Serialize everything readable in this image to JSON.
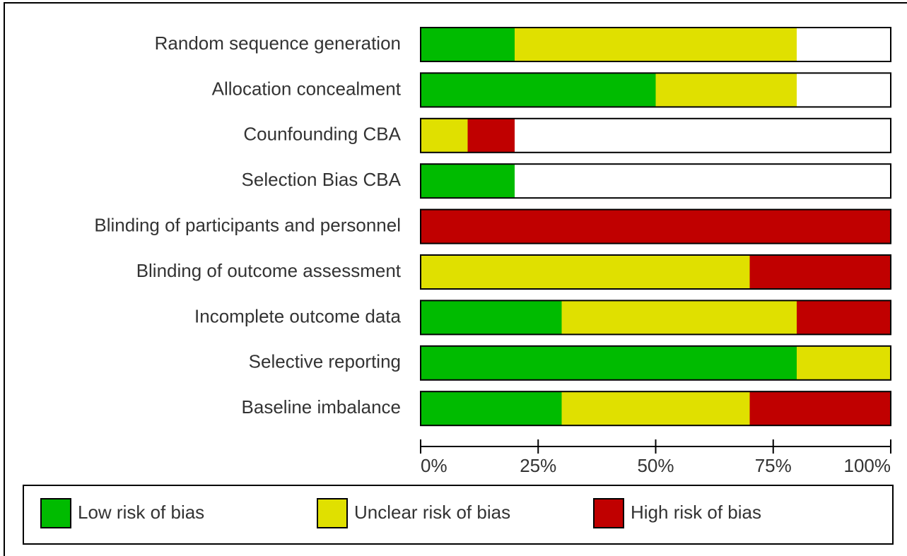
{
  "chart_data": {
    "type": "stacked-barh",
    "categories": [
      "Random sequence generation",
      "Allocation concealment",
      "Counfounding CBA",
      "Selection Bias CBA",
      "Blinding of participants and personnel",
      "Blinding of outcome assessment",
      "Incomplete outcome data",
      "Selective reporting",
      "Baseline imbalance"
    ],
    "series": [
      {
        "name": "Low risk of bias",
        "color": "#00bb00",
        "values": [
          20,
          50,
          0,
          20,
          0,
          0,
          30,
          80,
          30
        ]
      },
      {
        "name": "Unclear risk of bias",
        "color": "#e0e000",
        "values": [
          60,
          30,
          10,
          0,
          0,
          70,
          50,
          20,
          40
        ]
      },
      {
        "name": "High risk of bias",
        "color": "#c00000",
        "values": [
          0,
          0,
          10,
          0,
          100,
          30,
          20,
          0,
          30
        ]
      }
    ],
    "xlim": [
      0,
      100
    ],
    "xticks": [
      {
        "value": 0,
        "label": "0%"
      },
      {
        "value": 25,
        "label": "25%"
      },
      {
        "value": 50,
        "label": "50%"
      },
      {
        "value": 75,
        "label": "75%"
      },
      {
        "value": 100,
        "label": "100%"
      }
    ],
    "legend": "bottom"
  }
}
